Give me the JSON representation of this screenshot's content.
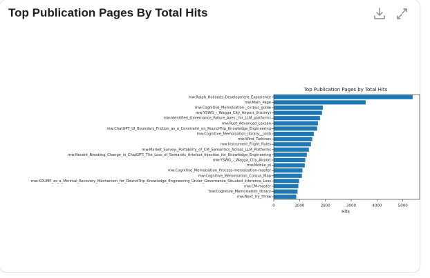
{
  "card_title": "Top Publication Pages By Total Hits",
  "chart_data": {
    "type": "barh",
    "title": "Top Publication Pages by Total Hits",
    "x_label": "Hits",
    "color": "#1f77b4",
    "categories": [
      "mw:Ralph_Hollands_Development_Experience",
      "mw:Main_Page",
      "mw:Cognitive_Memoisation:_corpus_guide",
      "mw:YSWG_-_Wagga_City_Airport_(history)",
      "mw:Identified_Governance_Failure_Axes:_for_LLM_platforms",
      "mw:Rust_Advanced_Lexsan",
      "mw:ChatGPT_UI_Boundary_Friction_as_a_Constraint_on_Round-Trip_Knowledge_Engineering",
      "mw:Cognitive_Memoisation_library__(old)",
      "mw:Wind_Turbines",
      "mw:Instrument_Flight_Rules",
      "mw:Market_Survey:_Portability_of_CM_Semantics_Across_LLM_Platforms",
      "mw:Recent_Breaking_Change_in_ChatGPT:_The_Loss_of_Semantic_Artefact_Injection_for_Knowledge_Engineering",
      "mw:YSWG_-_Wagga_City_Airport",
      "mw:Mobile_pi",
      "mw:Cognitive_Memoisation_Process-memoisation-master",
      "mw:Cognitive_Memoisation_Corpus_Map",
      "mw:XDUMP_as_a_Minimal_Recovery_Mechanism_for_Round-Trip_Knowledge_Engineering_Under_Governance_Situated_Inference_Loss",
      "mw:CM-master",
      "mw:Cognitive_Memoisation_library",
      "mw:Next_try_three"
    ],
    "values": [
      5380,
      3560,
      1900,
      1870,
      1790,
      1710,
      1680,
      1550,
      1490,
      1440,
      1360,
      1280,
      1220,
      1200,
      1110,
      1090,
      980,
      950,
      920,
      870
    ],
    "xlim": [
      0,
      5650
    ],
    "xticks": [
      0,
      1000,
      2000,
      3000,
      4000,
      5000
    ]
  }
}
